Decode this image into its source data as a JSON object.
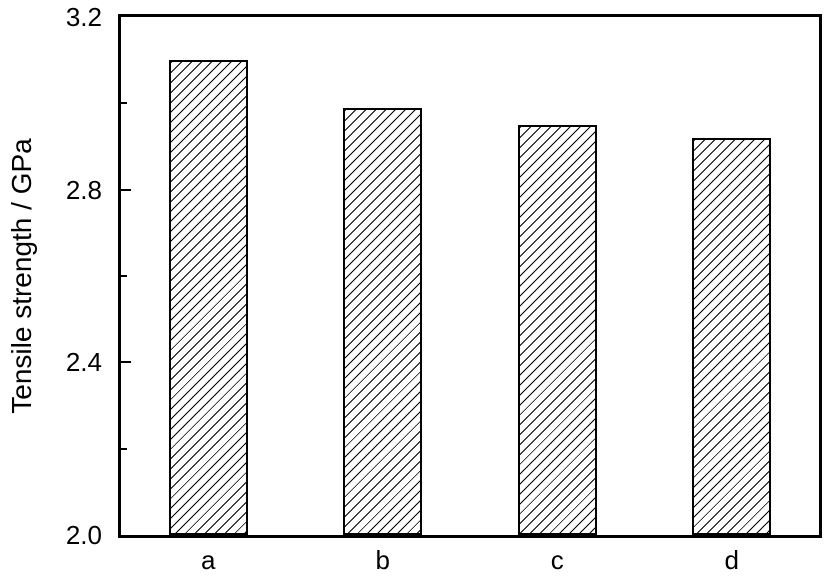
{
  "figure": {
    "background": "#ffffff",
    "line_color": "#000000"
  },
  "chart_data": {
    "type": "bar",
    "title": "",
    "xlabel": "",
    "ylabel": "Tensile strength / GPa",
    "categories": [
      "a",
      "b",
      "c",
      "d"
    ],
    "values": [
      3.1,
      2.99,
      2.95,
      2.92
    ],
    "ylim": [
      2.0,
      3.2
    ],
    "y_tick_labels": [
      {
        "label": "2.0",
        "value": 2.0
      },
      {
        "label": "2.4",
        "value": 2.4
      },
      {
        "label": "2.8",
        "value": 2.8
      },
      {
        "label": "3.2",
        "value": 3.2
      }
    ],
    "y_major_tick_marks": [
      2.4,
      2.8
    ],
    "y_minor_tick_marks": [
      2.2,
      2.6,
      3.0
    ],
    "grid": false,
    "legend": null,
    "bar_style": {
      "fill": "hatch-forward-diagonal",
      "stroke": "#000000",
      "background": "#ffffff"
    }
  }
}
